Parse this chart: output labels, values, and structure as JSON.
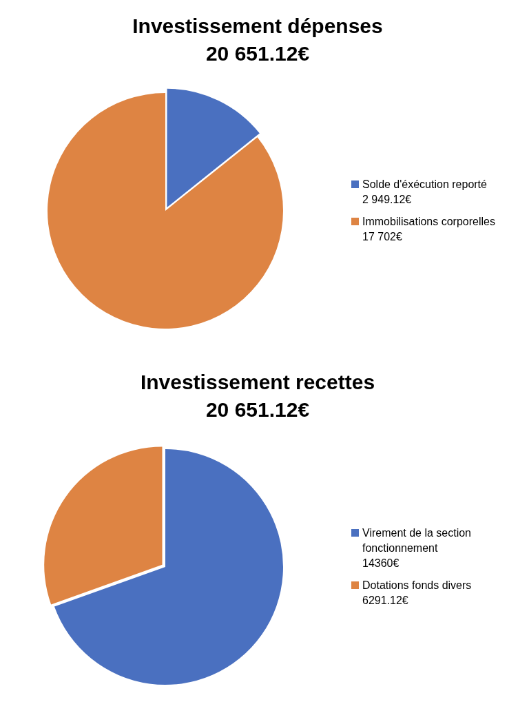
{
  "chart_data": [
    {
      "type": "pie",
      "title": "Investissement dépenses",
      "subtitle": "20 651.12€",
      "categories": [
        "Solde d'éxécution reporté",
        "Immobilisations corporelles"
      ],
      "values": [
        2949.12,
        17702
      ],
      "value_labels": [
        "2 949.12€",
        "17 702€"
      ],
      "colors": [
        "#4a70c0",
        "#de8443"
      ],
      "legend": "right"
    },
    {
      "type": "pie",
      "title": "Investissement recettes",
      "subtitle": "20 651.12€",
      "categories": [
        "Virement de la section fonctionnement",
        "Dotations fonds divers"
      ],
      "values": [
        14360,
        6291.12
      ],
      "value_labels": [
        "14360€",
        "6291.12€"
      ],
      "colors": [
        "#4a70c0",
        "#de8443"
      ],
      "legend": "right"
    }
  ]
}
